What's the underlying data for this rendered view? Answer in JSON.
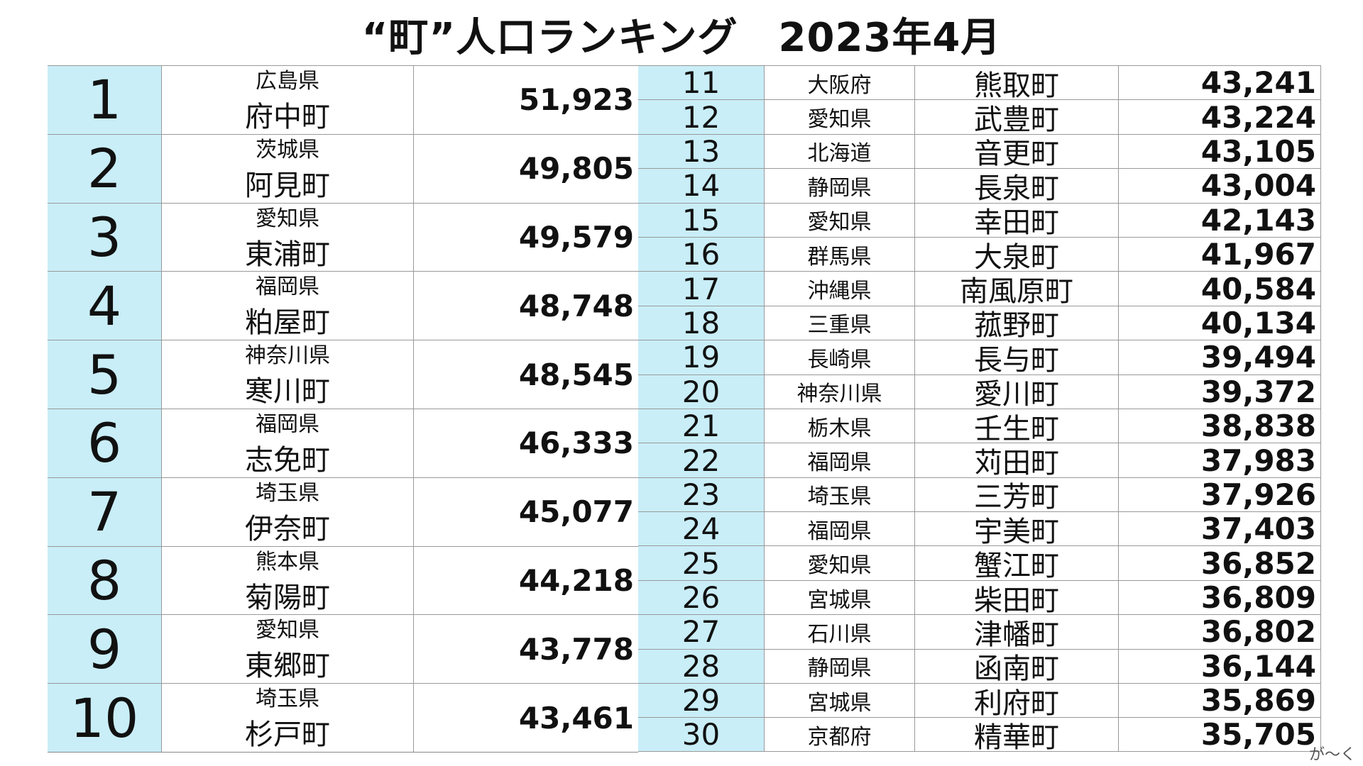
{
  "title": "“町”人口ランキング　2023年4月",
  "watermark": "が〜く",
  "rows": [
    {
      "rank": "1",
      "pref": "広島県",
      "town": "府中町",
      "pop": "51,923"
    },
    {
      "rank": "2",
      "pref": "茨城県",
      "town": "阿見町",
      "pop": "49,805"
    },
    {
      "rank": "3",
      "pref": "愛知県",
      "town": "東浦町",
      "pop": "49,579"
    },
    {
      "rank": "4",
      "pref": "福岡県",
      "town": "粕屋町",
      "pop": "48,748"
    },
    {
      "rank": "5",
      "pref": "神奈川県",
      "town": "寒川町",
      "pop": "48,545"
    },
    {
      "rank": "6",
      "pref": "福岡県",
      "town": "志免町",
      "pop": "46,333"
    },
    {
      "rank": "7",
      "pref": "埼玉県",
      "town": "伊奈町",
      "pop": "45,077"
    },
    {
      "rank": "8",
      "pref": "熊本県",
      "town": "菊陽町",
      "pop": "44,218"
    },
    {
      "rank": "9",
      "pref": "愛知県",
      "town": "東郷町",
      "pop": "43,778"
    },
    {
      "rank": "10",
      "pref": "埼玉県",
      "town": "杉戸町",
      "pop": "43,461"
    },
    {
      "rank": "11",
      "pref": "大阪府",
      "town": "熊取町",
      "pop": "43,241"
    },
    {
      "rank": "12",
      "pref": "愛知県",
      "town": "武豊町",
      "pop": "43,224"
    },
    {
      "rank": "13",
      "pref": "北海道",
      "town": "音更町",
      "pop": "43,105"
    },
    {
      "rank": "14",
      "pref": "静岡県",
      "town": "長泉町",
      "pop": "43,004"
    },
    {
      "rank": "15",
      "pref": "愛知県",
      "town": "幸田町",
      "pop": "42,143"
    },
    {
      "rank": "16",
      "pref": "群馬県",
      "town": "大泉町",
      "pop": "41,967"
    },
    {
      "rank": "17",
      "pref": "沖縄県",
      "town": "南風原町",
      "pop": "40,584"
    },
    {
      "rank": "18",
      "pref": "三重県",
      "town": "菰野町",
      "pop": "40,134"
    },
    {
      "rank": "19",
      "pref": "長崎県",
      "town": "長与町",
      "pop": "39,494"
    },
    {
      "rank": "20",
      "pref": "神奈川県",
      "town": "愛川町",
      "pop": "39,372"
    },
    {
      "rank": "21",
      "pref": "栃木県",
      "town": "壬生町",
      "pop": "38,838"
    },
    {
      "rank": "22",
      "pref": "福岡県",
      "town": "苅田町",
      "pop": "37,983"
    },
    {
      "rank": "23",
      "pref": "埼玉県",
      "town": "三芳町",
      "pop": "37,926"
    },
    {
      "rank": "24",
      "pref": "福岡県",
      "town": "宇美町",
      "pop": "37,403"
    },
    {
      "rank": "25",
      "pref": "愛知県",
      "town": "蟹江町",
      "pop": "36,852"
    },
    {
      "rank": "26",
      "pref": "宮城県",
      "town": "柴田町",
      "pop": "36,809"
    },
    {
      "rank": "27",
      "pref": "石川県",
      "town": "津幡町",
      "pop": "36,802"
    },
    {
      "rank": "28",
      "pref": "静岡県",
      "town": "函南町",
      "pop": "36,144"
    },
    {
      "rank": "29",
      "pref": "宮城県",
      "town": "利府町",
      "pop": "35,869"
    },
    {
      "rank": "30",
      "pref": "京都府",
      "town": "精華町",
      "pop": "35,705"
    }
  ]
}
